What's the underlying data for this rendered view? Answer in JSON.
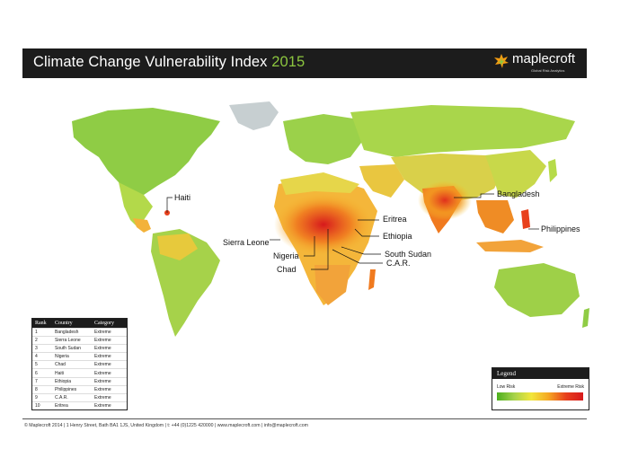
{
  "header": {
    "title_main": "Climate Change Vulnerability Index",
    "title_year": "2015",
    "logo_name": "maplecroft",
    "logo_tagline": "Global Risk Analytics"
  },
  "map": {
    "callouts": [
      {
        "label": "Haiti"
      },
      {
        "label": "Bangladesh"
      },
      {
        "label": "Eritrea"
      },
      {
        "label": "Ethiopia"
      },
      {
        "label": "Philippines"
      },
      {
        "label": "Sierra Leone"
      },
      {
        "label": "South Sudan"
      },
      {
        "label": "Nigeria"
      },
      {
        "label": "C.A.R."
      },
      {
        "label": "Chad"
      }
    ]
  },
  "ranking": {
    "headers": [
      "Rank",
      "Country",
      "Category"
    ],
    "rows": [
      [
        "1",
        "Bangladesh",
        "Extreme"
      ],
      [
        "2",
        "Sierra Leone",
        "Extreme"
      ],
      [
        "3",
        "South Sudan",
        "Extreme"
      ],
      [
        "4",
        "Nigeria",
        "Extreme"
      ],
      [
        "5",
        "Chad",
        "Extreme"
      ],
      [
        "6",
        "Haiti",
        "Extreme"
      ],
      [
        "7",
        "Ethiopia",
        "Extreme"
      ],
      [
        "8",
        "Philippines",
        "Extreme"
      ],
      [
        "9",
        "C.A.R.",
        "Extreme"
      ],
      [
        "10",
        "Eritrea",
        "Extreme"
      ]
    ]
  },
  "legend": {
    "title": "Legend",
    "low_label": "Low Risk",
    "high_label": "Extreme Risk",
    "colors": [
      "#4caf1e",
      "#a6d24a",
      "#f2e63a",
      "#f5a623",
      "#e8401c",
      "#d7191c"
    ]
  },
  "footer": {
    "text": "© Maplecroft 2014 | 1 Henry Street, Bath BA1 1JS, United Kingdom | t: +44 (0)1225 420000 | www.maplecroft.com | info@maplecroft.com"
  }
}
